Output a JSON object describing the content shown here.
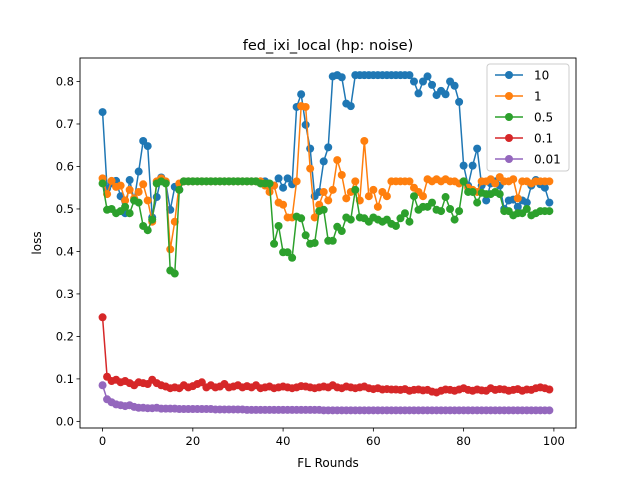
{
  "chart_data": {
    "type": "line",
    "title": "fed_ixi_local (hp: noise)",
    "xlabel": "FL Rounds",
    "ylabel": "loss",
    "xlim": [
      -5,
      104.9
    ],
    "ylim": [
      -0.0156,
      0.8553
    ],
    "x_ticks": [
      0,
      20,
      40,
      60,
      80,
      100
    ],
    "y_ticks": [
      0.0,
      0.1,
      0.2,
      0.3,
      0.4,
      0.5,
      0.6,
      0.7,
      0.8
    ],
    "x_tick_labels": [
      "0",
      "20",
      "40",
      "60",
      "80",
      "100"
    ],
    "y_tick_labels": [
      "0.0",
      "0.1",
      "0.2",
      "0.3",
      "0.4",
      "0.5",
      "0.6",
      "0.7",
      "0.8"
    ],
    "grid": false,
    "legend_position": "top-right",
    "marker": "circle",
    "x": [
      0,
      1,
      2,
      3,
      4,
      5,
      6,
      7,
      8,
      9,
      10,
      11,
      12,
      13,
      14,
      15,
      16,
      17,
      18,
      19,
      20,
      21,
      22,
      23,
      24,
      25,
      26,
      27,
      28,
      29,
      30,
      31,
      32,
      33,
      34,
      35,
      36,
      37,
      38,
      39,
      40,
      41,
      42,
      43,
      44,
      45,
      46,
      47,
      48,
      49,
      50,
      51,
      52,
      53,
      54,
      55,
      56,
      57,
      58,
      59,
      60,
      61,
      62,
      63,
      64,
      65,
      66,
      67,
      68,
      69,
      70,
      71,
      72,
      73,
      74,
      75,
      76,
      77,
      78,
      79,
      80,
      81,
      82,
      83,
      84,
      85,
      86,
      87,
      88,
      89,
      90,
      91,
      92,
      93,
      94,
      95,
      96,
      97,
      98,
      99
    ],
    "series": [
      {
        "name": "10",
        "color": "#1f77b4",
        "values": [
          0.728,
          0.548,
          0.56,
          0.566,
          0.53,
          0.49,
          0.568,
          0.52,
          0.588,
          0.66,
          0.648,
          0.48,
          0.528,
          0.574,
          0.562,
          0.498,
          0.552,
          0.545,
          0.565,
          0.565,
          0.565,
          0.565,
          0.565,
          0.565,
          0.565,
          0.565,
          0.565,
          0.565,
          0.565,
          0.565,
          0.565,
          0.565,
          0.565,
          0.565,
          0.565,
          0.565,
          0.565,
          0.555,
          0.555,
          0.572,
          0.55,
          0.572,
          0.558,
          0.74,
          0.77,
          0.698,
          0.642,
          0.53,
          0.54,
          0.612,
          0.645,
          0.812,
          0.815,
          0.81,
          0.748,
          0.742,
          0.815,
          0.815,
          0.815,
          0.815,
          0.815,
          0.815,
          0.815,
          0.815,
          0.815,
          0.815,
          0.815,
          0.815,
          0.815,
          0.8,
          0.772,
          0.8,
          0.812,
          0.792,
          0.768,
          0.778,
          0.77,
          0.8,
          0.79,
          0.752,
          0.602,
          0.555,
          0.602,
          0.642,
          0.555,
          0.52,
          0.56,
          0.565,
          0.555,
          0.5,
          0.52,
          0.522,
          0.505,
          0.52,
          0.515,
          0.555,
          0.568,
          0.558,
          0.55,
          0.515
        ]
      },
      {
        "name": "1",
        "color": "#ff7f0e",
        "values": [
          0.572,
          0.535,
          0.566,
          0.552,
          0.555,
          0.52,
          0.545,
          0.525,
          0.54,
          0.558,
          0.52,
          0.47,
          0.565,
          0.572,
          0.565,
          0.405,
          0.47,
          0.56,
          0.565,
          0.565,
          0.565,
          0.565,
          0.565,
          0.565,
          0.565,
          0.565,
          0.565,
          0.565,
          0.565,
          0.565,
          0.565,
          0.565,
          0.565,
          0.565,
          0.565,
          0.565,
          0.555,
          0.54,
          0.555,
          0.515,
          0.51,
          0.48,
          0.48,
          0.565,
          0.742,
          0.74,
          0.595,
          0.48,
          0.51,
          0.54,
          0.52,
          0.545,
          0.615,
          0.58,
          0.525,
          0.54,
          0.565,
          0.52,
          0.66,
          0.53,
          0.545,
          0.505,
          0.54,
          0.53,
          0.565,
          0.565,
          0.565,
          0.565,
          0.565,
          0.55,
          0.54,
          0.53,
          0.57,
          0.565,
          0.57,
          0.565,
          0.57,
          0.565,
          0.565,
          0.56,
          0.565,
          0.55,
          0.545,
          0.54,
          0.565,
          0.565,
          0.57,
          0.56,
          0.575,
          0.565,
          0.565,
          0.57,
          0.525,
          0.565,
          0.565,
          0.56,
          0.565,
          0.565,
          0.565,
          0.565
        ]
      },
      {
        "name": "0.5",
        "color": "#2ca02c",
        "values": [
          0.56,
          0.498,
          0.5,
          0.49,
          0.495,
          0.505,
          0.49,
          0.52,
          0.515,
          0.46,
          0.45,
          0.475,
          0.56,
          0.565,
          0.56,
          0.355,
          0.348,
          0.545,
          0.565,
          0.565,
          0.565,
          0.565,
          0.565,
          0.565,
          0.565,
          0.565,
          0.565,
          0.565,
          0.565,
          0.565,
          0.565,
          0.565,
          0.565,
          0.565,
          0.565,
          0.56,
          0.56,
          0.56,
          0.418,
          0.46,
          0.398,
          0.398,
          0.385,
          0.482,
          0.478,
          0.438,
          0.418,
          0.42,
          0.495,
          0.498,
          0.425,
          0.425,
          0.458,
          0.448,
          0.48,
          0.475,
          0.545,
          0.48,
          0.478,
          0.47,
          0.48,
          0.475,
          0.47,
          0.475,
          0.465,
          0.46,
          0.478,
          0.49,
          0.47,
          0.53,
          0.498,
          0.505,
          0.505,
          0.515,
          0.498,
          0.495,
          0.528,
          0.5,
          0.475,
          0.495,
          0.565,
          0.54,
          0.54,
          0.515,
          0.538,
          0.535,
          0.535,
          0.54,
          0.535,
          0.495,
          0.495,
          0.485,
          0.49,
          0.49,
          0.5,
          0.485,
          0.49,
          0.495,
          0.495,
          0.495
        ]
      },
      {
        "name": "0.1",
        "color": "#d62728",
        "values": [
          0.245,
          0.105,
          0.095,
          0.098,
          0.092,
          0.095,
          0.09,
          0.085,
          0.092,
          0.09,
          0.088,
          0.098,
          0.09,
          0.085,
          0.082,
          0.078,
          0.08,
          0.078,
          0.085,
          0.08,
          0.083,
          0.088,
          0.092,
          0.08,
          0.085,
          0.08,
          0.082,
          0.088,
          0.08,
          0.082,
          0.085,
          0.08,
          0.083,
          0.08,
          0.085,
          0.078,
          0.08,
          0.082,
          0.078,
          0.08,
          0.082,
          0.08,
          0.078,
          0.08,
          0.083,
          0.082,
          0.08,
          0.078,
          0.08,
          0.082,
          0.08,
          0.085,
          0.08,
          0.078,
          0.082,
          0.08,
          0.078,
          0.08,
          0.082,
          0.078,
          0.076,
          0.078,
          0.075,
          0.076,
          0.075,
          0.075,
          0.074,
          0.076,
          0.072,
          0.074,
          0.075,
          0.073,
          0.074,
          0.07,
          0.068,
          0.072,
          0.075,
          0.074,
          0.072,
          0.075,
          0.078,
          0.074,
          0.072,
          0.075,
          0.073,
          0.072,
          0.078,
          0.074,
          0.076,
          0.075,
          0.072,
          0.074,
          0.076,
          0.072,
          0.075,
          0.074,
          0.078,
          0.08,
          0.078,
          0.075
        ]
      },
      {
        "name": "0.01",
        "color": "#9467bd",
        "values": [
          0.085,
          0.052,
          0.045,
          0.04,
          0.038,
          0.036,
          0.038,
          0.034,
          0.032,
          0.032,
          0.031,
          0.031,
          0.032,
          0.03,
          0.03,
          0.03,
          0.03,
          0.029,
          0.029,
          0.029,
          0.029,
          0.029,
          0.029,
          0.029,
          0.029,
          0.028,
          0.028,
          0.028,
          0.028,
          0.028,
          0.028,
          0.028,
          0.027,
          0.027,
          0.027,
          0.027,
          0.027,
          0.027,
          0.027,
          0.027,
          0.027,
          0.027,
          0.027,
          0.027,
          0.027,
          0.027,
          0.027,
          0.027,
          0.027,
          0.026,
          0.026,
          0.026,
          0.026,
          0.026,
          0.026,
          0.026,
          0.026,
          0.026,
          0.026,
          0.026,
          0.026,
          0.026,
          0.026,
          0.026,
          0.026,
          0.026,
          0.026,
          0.026,
          0.026,
          0.026,
          0.026,
          0.026,
          0.026,
          0.026,
          0.026,
          0.026,
          0.026,
          0.026,
          0.026,
          0.026,
          0.026,
          0.026,
          0.026,
          0.026,
          0.026,
          0.026,
          0.026,
          0.026,
          0.026,
          0.026,
          0.026,
          0.026,
          0.026,
          0.026,
          0.026,
          0.026,
          0.026,
          0.026,
          0.026,
          0.026
        ]
      }
    ]
  }
}
